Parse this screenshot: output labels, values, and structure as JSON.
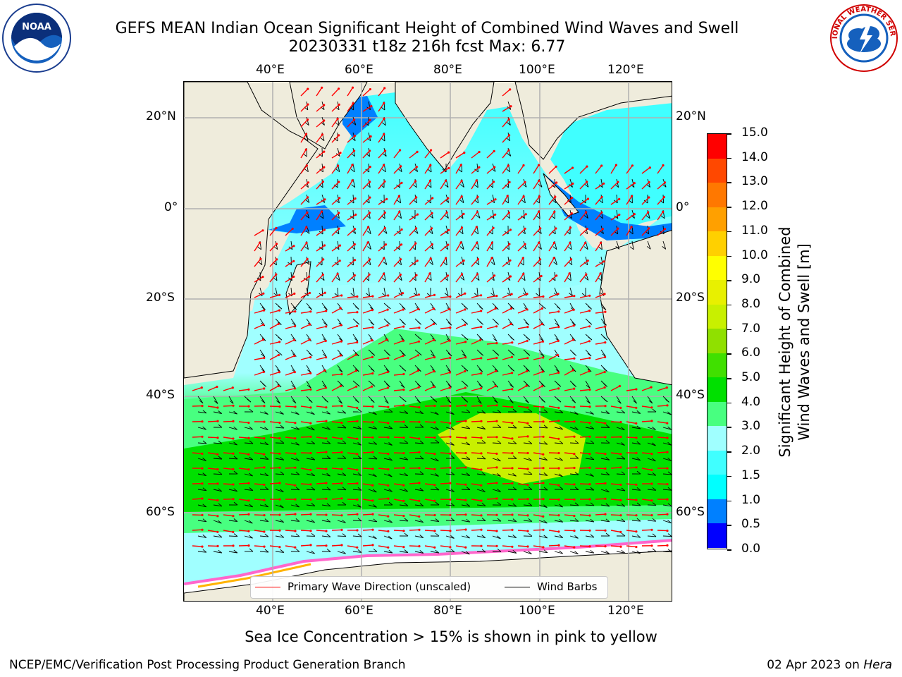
{
  "header": {
    "title_line1": "GEFS MEAN Indian Ocean Significant Height of Combined Wind Waves and Swell",
    "title_line2": "20230331 t18z 216h fcst   Max: 6.77"
  },
  "logos": {
    "left": {
      "name": "noaa-logo",
      "text": "NOAA"
    },
    "right": {
      "name": "national-weather-service-logo",
      "text": "NATIONAL WEATHER SERVICE"
    }
  },
  "map": {
    "region": "Indian Ocean",
    "lon_ticks": [
      "40°E",
      "60°E",
      "80°E",
      "100°E",
      "120°E"
    ],
    "lat_ticks": [
      "20°N",
      "0°",
      "20°S",
      "40°S",
      "60°S"
    ],
    "land_color": "#efecdc",
    "grid": true,
    "legend": {
      "wave_label": "Primary Wave Direction (unscaled)",
      "wave_color": "#ff0000",
      "wind_label": "Wind Barbs",
      "wind_color": "#000000"
    }
  },
  "colorbar": {
    "label_line1": "Significant Height of Combined",
    "label_line2": "Wind Waves and Swell [m]",
    "ticks": [
      "0.0",
      "0.5",
      "1.0",
      "1.5",
      "2.0",
      "3.0",
      "4.0",
      "5.0",
      "6.0",
      "7.0",
      "8.0",
      "9.0",
      "10.0",
      "11.0",
      "12.0",
      "13.0",
      "14.0",
      "15.0"
    ],
    "colors": [
      "#0000ff",
      "#0080ff",
      "#00ffff",
      "#40ffff",
      "#a0ffff",
      "#48ff80",
      "#00e000",
      "#40e000",
      "#90e000",
      "#c8f000",
      "#e8f000",
      "#ffff00",
      "#ffd000",
      "#ffa000",
      "#ff7800",
      "#ff4800",
      "#ff0000"
    ]
  },
  "footer": {
    "ice_note": "Sea Ice Concentration > 15% is shown in pink to yellow",
    "credit": "NCEP/EMC/Verification Post Processing Product Generation Branch",
    "date": "02 Apr 2023 on ",
    "machine": "Hera"
  }
}
